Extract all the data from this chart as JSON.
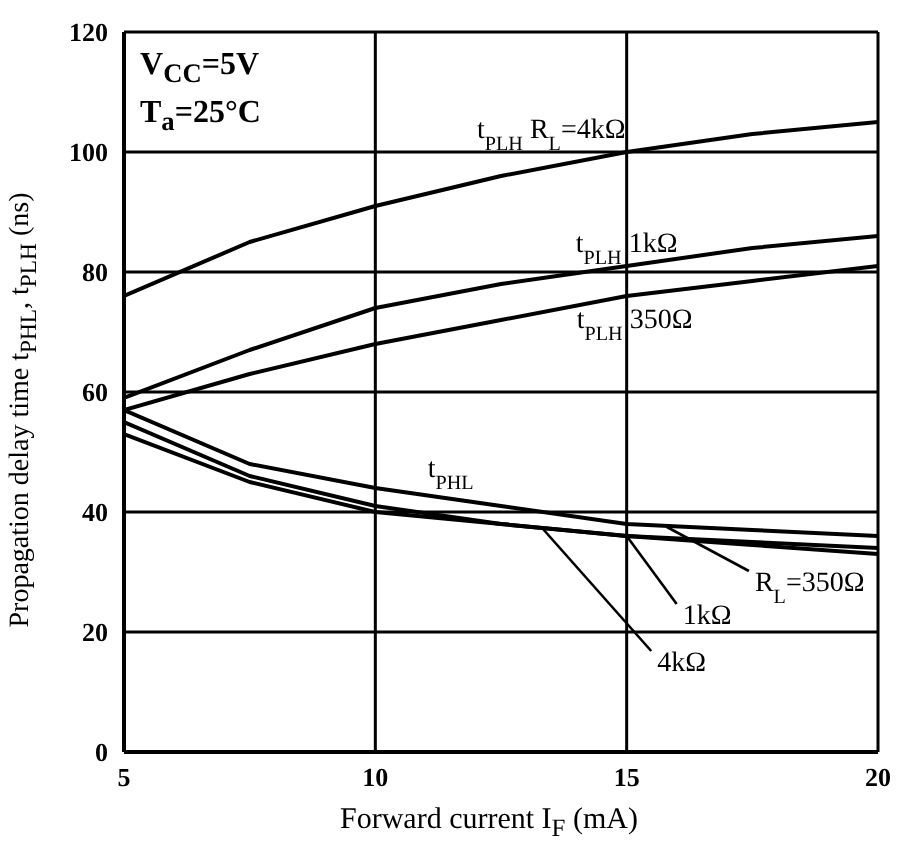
{
  "chart_data": {
    "type": "line",
    "xlabel": "Forward current I$_{F}$ (mA)",
    "ylabel": "Propagation delay time t$_{PHL}$, t$_{PLH}$ (ns)",
    "x": [
      5,
      7.5,
      10,
      12.5,
      15,
      17.5,
      20
    ],
    "series": [
      {
        "color": "#000000",
        "values": [
          76,
          85,
          91,
          96,
          100,
          103,
          105
        ]
      },
      {
        "color": "#000000",
        "values": [
          59,
          67,
          74,
          78,
          81,
          84,
          86
        ]
      },
      {
        "color": "#000000",
        "values": [
          57,
          63,
          68,
          72,
          76,
          78.5,
          81
        ]
      },
      {
        "color": "#000000",
        "values": [
          57,
          48,
          44,
          41,
          38,
          37,
          36
        ]
      },
      {
        "color": "#000000",
        "values": [
          55,
          46,
          41,
          38,
          36,
          35,
          34
        ]
      },
      {
        "color": "#000000",
        "values": [
          53,
          45,
          40,
          38,
          36,
          34.5,
          33
        ]
      }
    ],
    "xlim": [
      5,
      20
    ],
    "xticks": [
      5,
      10,
      15,
      20
    ],
    "ylim": [
      0,
      120
    ],
    "yticks": [
      0,
      20,
      40,
      60,
      80,
      100,
      120
    ],
    "grid": true,
    "marker": "none",
    "line_style": "solid",
    "annotations": [
      "V$_{CC}$=5V",
      "T$_{a}$=25°C",
      {
        "text": "t$_{PLH}$ R$_{L}$=4kΩ",
        "x": 13.5,
        "y": 98
      },
      {
        "text": "t$_{PLH}$ 1kΩ",
        "x": 15,
        "y": 81
      },
      {
        "text": "t$_{PLH}$ 350Ω",
        "x": 15,
        "y": 76
      },
      {
        "text": "t$_{PHL}$",
        "x": 11.5,
        "y": 43.5
      },
      {
        "text": "R$_{L}$=350Ω",
        "x": 15.8,
        "y": 37.5
      },
      {
        "text": "1kΩ",
        "x": 15,
        "y": 36
      },
      {
        "text": "4kΩ",
        "x": 13.3,
        "y": 37.5
      }
    ]
  }
}
